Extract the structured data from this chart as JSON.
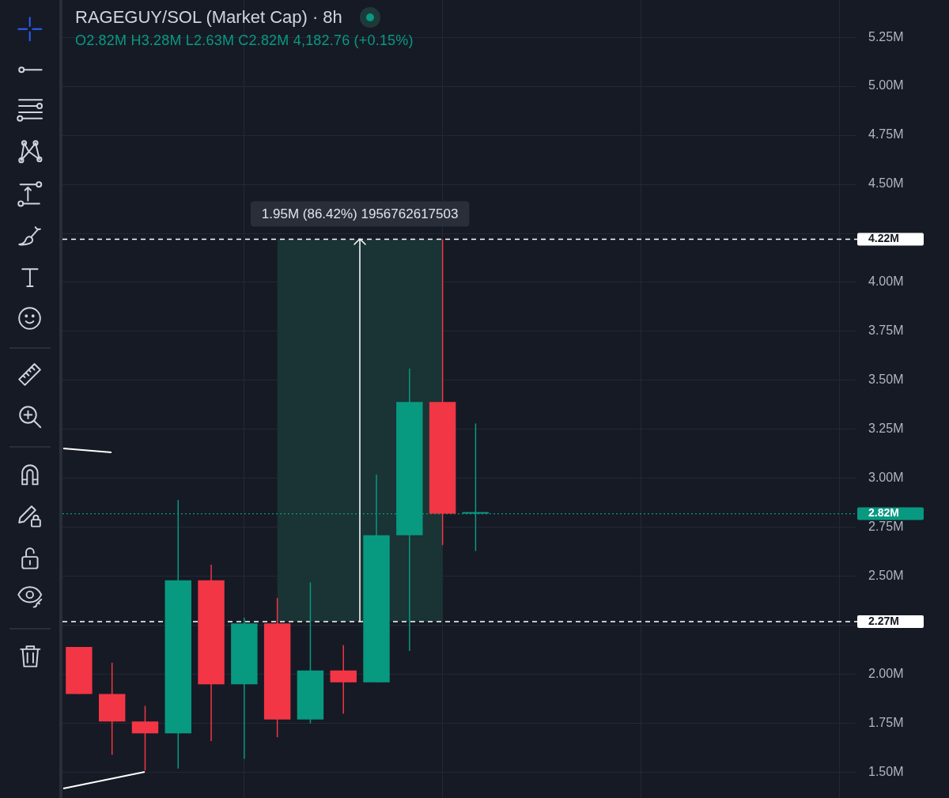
{
  "chart_data": {
    "type": "candlestick",
    "title": "RAGEGUY/SOL (Market Cap) · 8h",
    "subtitle": "O2.82M H3.28M L2.63M C2.82M 4,182.76 (+0.15%)",
    "categories": [
      null,
      null,
      null,
      null,
      null,
      null,
      null,
      null,
      null,
      null,
      null,
      null,
      null,
      null,
      null,
      null,
      null,
      null,
      null,
      null,
      null,
      null,
      null,
      null
    ],
    "ohlc": [
      [
        2.14,
        2.14,
        1.9,
        1.9
      ],
      [
        1.9,
        2.06,
        1.59,
        1.76
      ],
      [
        1.76,
        1.84,
        1.51,
        1.7
      ],
      [
        1.7,
        2.89,
        1.52,
        2.48
      ],
      [
        2.48,
        2.56,
        1.66,
        1.95
      ],
      [
        1.95,
        2.29,
        1.57,
        2.26
      ],
      [
        2.26,
        2.39,
        1.68,
        1.77
      ],
      [
        1.77,
        2.47,
        1.75,
        2.02
      ],
      [
        2.02,
        2.15,
        1.8,
        1.96
      ],
      [
        1.96,
        3.02,
        1.96,
        2.71
      ],
      [
        2.71,
        3.56,
        2.12,
        3.39
      ],
      [
        3.39,
        4.22,
        2.66,
        2.82
      ],
      [
        2.82,
        3.28,
        2.63,
        2.82
      ],
      null,
      null,
      null,
      null,
      null,
      null,
      null,
      null,
      null,
      null,
      null
    ],
    "colors": [
      "#f23645",
      "#f23645",
      "#f23645",
      "#089981",
      "#f23645",
      "#089981",
      "#f23645",
      "#089981",
      "#f23645",
      "#089981",
      "#089981",
      "#f23645",
      "#089981",
      null,
      null,
      null,
      null,
      null,
      null,
      null,
      null,
      null,
      null,
      null
    ],
    "ylim": [
      1.37,
      5.44
    ],
    "yticks": [
      {
        "value": 1.5,
        "label": "1.50M"
      },
      {
        "value": 1.75,
        "label": "1.75M"
      },
      {
        "value": 2.0,
        "label": "2.00M"
      },
      {
        "value": 2.25,
        "label": null
      },
      {
        "value": 2.5,
        "label": "2.50M"
      },
      {
        "value": 2.75,
        "label": "2.75M"
      },
      {
        "value": 3.0,
        "label": "3.00M"
      },
      {
        "value": 3.25,
        "label": "3.25M"
      },
      {
        "value": 3.5,
        "label": "3.50M"
      },
      {
        "value": 3.75,
        "label": "3.75M"
      },
      {
        "value": 4.0,
        "label": "4.00M"
      },
      {
        "value": 4.25,
        "label": null
      },
      {
        "value": 4.5,
        "label": "4.50M"
      },
      {
        "value": 4.75,
        "label": "4.75M"
      },
      {
        "value": 5.0,
        "label": "5.00M"
      },
      {
        "value": 5.25,
        "label": "5.25M"
      }
    ],
    "ref_lines": [
      {
        "axis": "y",
        "value": 4.22,
        "label": "4.22M",
        "color": "#ffffff",
        "line_style": "dashed"
      },
      {
        "axis": "y",
        "value": 2.27,
        "label": "2.27M",
        "color": "#ffffff",
        "line_style": "dashed"
      },
      {
        "axis": "y",
        "value": 2.82,
        "label": "2.82M",
        "color": "#089981",
        "line_style": "dotted"
      }
    ],
    "bands": [
      {
        "axis": "y",
        "from": 2.27,
        "to": 4.22,
        "label": "1.95M (86.42%) 1956762617503",
        "color": "#1a3334"
      }
    ],
    "grid": true,
    "tick_labels": "y"
  }
}
